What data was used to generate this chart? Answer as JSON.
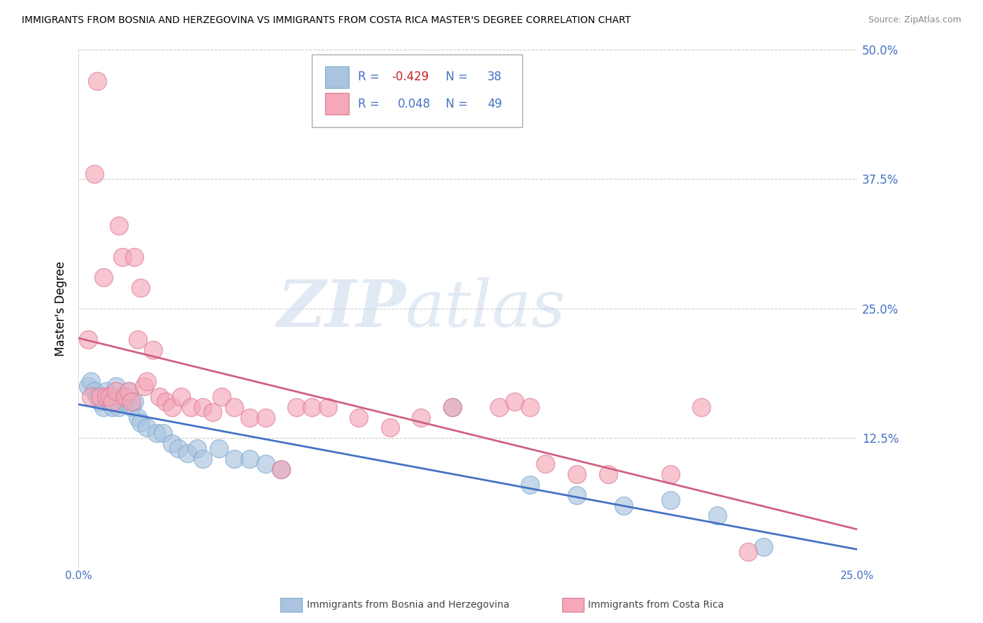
{
  "title": "IMMIGRANTS FROM BOSNIA AND HERZEGOVINA VS IMMIGRANTS FROM COSTA RICA MASTER'S DEGREE CORRELATION CHART",
  "source": "Source: ZipAtlas.com",
  "ylabel": "Master's Degree",
  "xlim": [
    0.0,
    0.25
  ],
  "ylim": [
    0.0,
    0.5
  ],
  "yticks": [
    0.0,
    0.125,
    0.25,
    0.375,
    0.5
  ],
  "ytick_labels": [
    "",
    "12.5%",
    "25.0%",
    "37.5%",
    "50.0%"
  ],
  "xticks": [
    0.0,
    0.0625,
    0.125,
    0.1875,
    0.25
  ],
  "xtick_labels": [
    "0.0%",
    "",
    "",
    "",
    "25.0%"
  ],
  "blue_R": -0.429,
  "blue_N": 38,
  "pink_R": 0.048,
  "pink_N": 49,
  "blue_color": "#aac4e0",
  "pink_color": "#f4a8b8",
  "blue_edge_color": "#7aaad0",
  "pink_edge_color": "#e07898",
  "blue_line_color": "#4472c4",
  "pink_line_color": "#d06080",
  "legend_blue_label": "Immigrants from Bosnia and Herzegovina",
  "legend_pink_label": "Immigrants from Costa Rica",
  "watermark_zip": "ZIP",
  "watermark_atlas": "atlas",
  "blue_scatter_x": [
    0.003,
    0.004,
    0.005,
    0.006,
    0.007,
    0.008,
    0.009,
    0.01,
    0.011,
    0.012,
    0.013,
    0.014,
    0.015,
    0.016,
    0.017,
    0.018,
    0.019,
    0.02,
    0.022,
    0.025,
    0.027,
    0.03,
    0.032,
    0.035,
    0.038,
    0.04,
    0.045,
    0.05,
    0.055,
    0.06,
    0.065,
    0.12,
    0.145,
    0.16,
    0.175,
    0.19,
    0.205,
    0.22
  ],
  "blue_scatter_y": [
    0.175,
    0.18,
    0.17,
    0.165,
    0.16,
    0.155,
    0.17,
    0.16,
    0.155,
    0.175,
    0.155,
    0.165,
    0.16,
    0.17,
    0.155,
    0.16,
    0.145,
    0.14,
    0.135,
    0.13,
    0.13,
    0.12,
    0.115,
    0.11,
    0.115,
    0.105,
    0.115,
    0.105,
    0.105,
    0.1,
    0.095,
    0.155,
    0.08,
    0.07,
    0.06,
    0.065,
    0.05,
    0.02
  ],
  "pink_scatter_x": [
    0.003,
    0.004,
    0.005,
    0.006,
    0.007,
    0.008,
    0.009,
    0.01,
    0.011,
    0.012,
    0.013,
    0.014,
    0.015,
    0.016,
    0.017,
    0.018,
    0.019,
    0.02,
    0.021,
    0.022,
    0.024,
    0.026,
    0.028,
    0.03,
    0.033,
    0.036,
    0.04,
    0.043,
    0.046,
    0.05,
    0.055,
    0.06,
    0.065,
    0.07,
    0.075,
    0.08,
    0.09,
    0.1,
    0.11,
    0.12,
    0.135,
    0.14,
    0.145,
    0.15,
    0.16,
    0.17,
    0.19,
    0.2,
    0.215
  ],
  "pink_scatter_y": [
    0.22,
    0.165,
    0.38,
    0.47,
    0.165,
    0.28,
    0.165,
    0.165,
    0.16,
    0.17,
    0.33,
    0.3,
    0.165,
    0.17,
    0.16,
    0.3,
    0.22,
    0.27,
    0.175,
    0.18,
    0.21,
    0.165,
    0.16,
    0.155,
    0.165,
    0.155,
    0.155,
    0.15,
    0.165,
    0.155,
    0.145,
    0.145,
    0.095,
    0.155,
    0.155,
    0.155,
    0.145,
    0.135,
    0.145,
    0.155,
    0.155,
    0.16,
    0.155,
    0.1,
    0.09,
    0.09,
    0.09,
    0.155,
    0.015
  ]
}
